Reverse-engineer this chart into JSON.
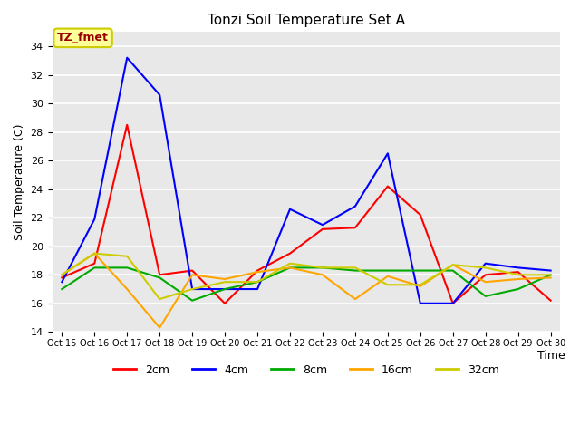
{
  "title": "Tonzi Soil Temperature Set A",
  "xlabel": "Time",
  "ylabel": "Soil Temperature (C)",
  "x_labels": [
    "Oct 15",
    "Oct 16",
    "Oct 17",
    "Oct 18",
    "Oct 19",
    "Oct 20",
    "Oct 21",
    "Oct 22",
    "Oct 23",
    "Oct 24",
    "Oct 25",
    "Oct 26",
    "Oct 27",
    "Oct 28",
    "Oct 29",
    "Oct 30"
  ],
  "ylim": [
    14,
    35
  ],
  "yticks": [
    14,
    16,
    18,
    20,
    22,
    24,
    26,
    28,
    30,
    32,
    34
  ],
  "annotation_label": "TZ_fmet",
  "annotation_bg": "#FFFF99",
  "annotation_border": "#CCCC00",
  "annotation_text_color": "#990000",
  "series": {
    "2cm": {
      "color": "#FF0000",
      "values": [
        17.8,
        18.8,
        28.5,
        18.0,
        18.3,
        16.0,
        18.3,
        19.5,
        21.2,
        21.3,
        24.2,
        22.2,
        16.0,
        18.0,
        18.2,
        16.2
      ]
    },
    "4cm": {
      "color": "#0000FF",
      "values": [
        17.5,
        21.9,
        33.2,
        30.6,
        17.0,
        17.0,
        17.0,
        22.6,
        21.5,
        22.8,
        26.5,
        16.0,
        16.0,
        18.8,
        18.5,
        18.3
      ]
    },
    "8cm": {
      "color": "#00AA00",
      "values": [
        17.0,
        18.5,
        18.5,
        17.8,
        16.2,
        17.0,
        17.5,
        18.5,
        18.5,
        18.3,
        18.3,
        18.3,
        18.3,
        16.5,
        17.0,
        18.0
      ]
    },
    "16cm": {
      "color": "#FFA500",
      "values": [
        18.0,
        19.5,
        17.0,
        14.3,
        18.0,
        17.7,
        18.2,
        18.5,
        18.0,
        16.3,
        17.9,
        17.2,
        18.7,
        17.5,
        17.7,
        17.8
      ]
    },
    "32cm": {
      "color": "#CCCC00",
      "values": [
        18.0,
        19.5,
        19.3,
        16.3,
        17.0,
        17.5,
        17.5,
        18.8,
        18.5,
        18.5,
        17.3,
        17.3,
        18.7,
        18.5,
        18.0,
        18.0
      ]
    }
  },
  "plot_bg_color": "#E8E8E8",
  "grid_color": "#FFFFFF",
  "fig_bg_color": "#FFFFFF"
}
